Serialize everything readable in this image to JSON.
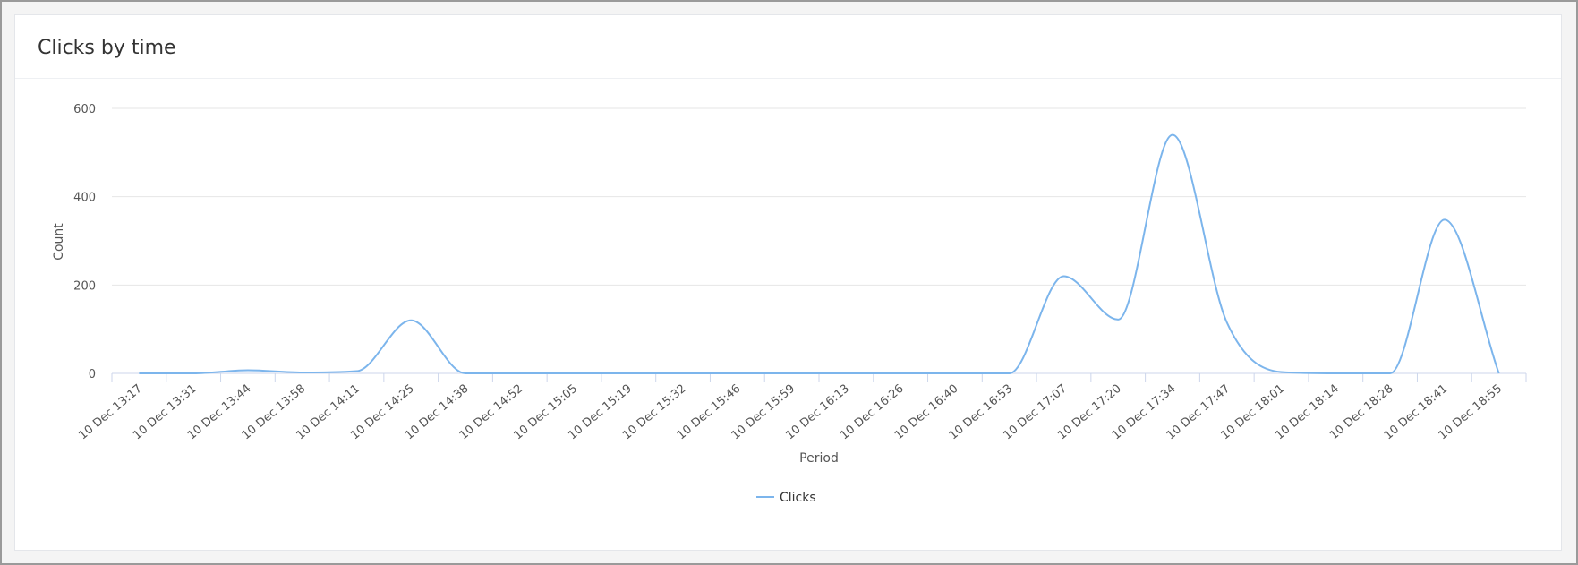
{
  "header": {
    "title": "Clicks by time"
  },
  "chart_data": {
    "type": "line",
    "categories": [
      "10 Dec 13:17",
      "10 Dec 13:31",
      "10 Dec 13:44",
      "10 Dec 13:58",
      "10 Dec 14:11",
      "10 Dec 14:25",
      "10 Dec 14:38",
      "10 Dec 14:52",
      "10 Dec 15:05",
      "10 Dec 15:19",
      "10 Dec 15:32",
      "10 Dec 15:46",
      "10 Dec 15:59",
      "10 Dec 16:13",
      "10 Dec 16:26",
      "10 Dec 16:40",
      "10 Dec 16:53",
      "10 Dec 17:07",
      "10 Dec 17:20",
      "10 Dec 17:34",
      "10 Dec 17:47",
      "10 Dec 18:01",
      "10 Dec 18:14",
      "10 Dec 18:28",
      "10 Dec 18:41",
      "10 Dec 18:55"
    ],
    "series": [
      {
        "name": "Clicks",
        "color": "#7cb5ec",
        "values": [
          0,
          0,
          7,
          2,
          5,
          120,
          0,
          0,
          0,
          0,
          0,
          0,
          0,
          0,
          0,
          0,
          0,
          220,
          122,
          540,
          115,
          3,
          0,
          0,
          348,
          0
        ]
      }
    ],
    "x_label": "Period",
    "y_label": "Count",
    "ylim": [
      0,
      600
    ],
    "yticks": [
      0,
      200,
      400,
      600
    ],
    "grid": true,
    "legend": "bottom"
  }
}
